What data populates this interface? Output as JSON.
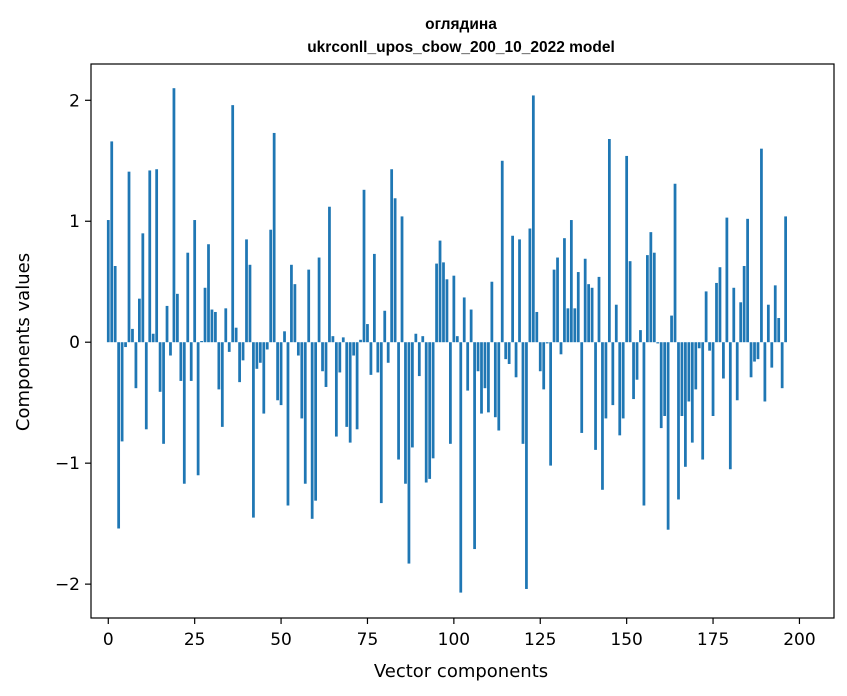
{
  "chart_data": {
    "type": "bar",
    "title": "оглядина",
    "subtitle": "ukrconll_upos_cbow_200_10_2022 model",
    "xlabel": "Vector components",
    "ylabel": "Components values",
    "xlim": [
      -5,
      210
    ],
    "ylim": [
      -2.28,
      2.3
    ],
    "xticks": [
      0,
      25,
      50,
      75,
      100,
      125,
      150,
      175,
      200
    ],
    "yticks": [
      -2,
      -1,
      0,
      1,
      2
    ],
    "ytick_labels": [
      "−2",
      "−1",
      "0",
      "1",
      "2"
    ],
    "bar_color": "#1f77b4",
    "values": [
      1.01,
      1.66,
      0.63,
      -1.54,
      -0.82,
      -0.04,
      1.41,
      0.11,
      -0.38,
      0.36,
      0.9,
      -0.72,
      1.42,
      0.07,
      1.43,
      -0.41,
      -0.84,
      0.3,
      -0.11,
      2.1,
      0.4,
      -0.32,
      -1.17,
      0.74,
      -0.32,
      1.01,
      -1.1,
      0.01,
      0.45,
      0.81,
      0.27,
      0.25,
      -0.39,
      -0.7,
      0.28,
      -0.08,
      1.96,
      0.12,
      -0.33,
      -0.15,
      0.85,
      0.64,
      -1.45,
      -0.22,
      -0.17,
      -0.59,
      -0.06,
      0.93,
      1.73,
      -0.48,
      -0.52,
      0.09,
      -1.35,
      0.64,
      0.48,
      -0.11,
      -0.63,
      -1.17,
      0.6,
      -1.46,
      -1.31,
      0.7,
      -0.24,
      -0.37,
      1.12,
      0.05,
      -0.78,
      -0.25,
      0.04,
      -0.7,
      -0.83,
      -0.11,
      -0.72,
      0.02,
      1.26,
      0.15,
      -0.27,
      0.73,
      -0.25,
      -1.33,
      0.26,
      -0.17,
      1.43,
      1.19,
      -0.97,
      1.04,
      -1.17,
      -1.83,
      -0.87,
      0.07,
      -0.28,
      0.05,
      -1.16,
      -1.13,
      -0.96,
      0.65,
      0.84,
      0.66,
      0.52,
      -0.84,
      0.55,
      0.05,
      -2.07,
      0.37,
      -0.4,
      0.27,
      -1.71,
      -0.24,
      -0.59,
      -0.38,
      -0.58,
      0.5,
      -0.62,
      -0.73,
      1.5,
      -0.14,
      -0.18,
      0.88,
      -0.29,
      0.85,
      -0.84,
      -2.04,
      0.94,
      2.04,
      0.25,
      -0.24,
      -0.39,
      -0.01,
      -1.02,
      0.6,
      0.7,
      -0.1,
      0.86,
      0.28,
      1.01,
      0.28,
      0.58,
      -0.75,
      0.69,
      0.48,
      0.45,
      -0.89,
      0.54,
      -1.22,
      -0.63,
      1.68,
      -0.52,
      0.31,
      -0.77,
      -0.63,
      1.54,
      0.67,
      -0.47,
      -0.31,
      0.1,
      -1.35,
      0.72,
      0.91,
      0.74,
      -0.01,
      -0.71,
      -0.61,
      -1.55,
      0.22,
      1.31,
      -1.3,
      -0.61,
      -1.03,
      -0.49,
      -0.83,
      -0.39,
      -0.05,
      -0.97,
      0.42,
      -0.07,
      -0.61,
      0.49,
      0.62,
      -0.3,
      1.03,
      -1.05,
      0.45,
      -0.48,
      0.33,
      0.63,
      1.02,
      -0.29,
      -0.16,
      -0.14,
      1.6,
      -0.49,
      0.31,
      -0.21,
      0.47,
      0.2,
      -0.38,
      1.04
    ]
  }
}
